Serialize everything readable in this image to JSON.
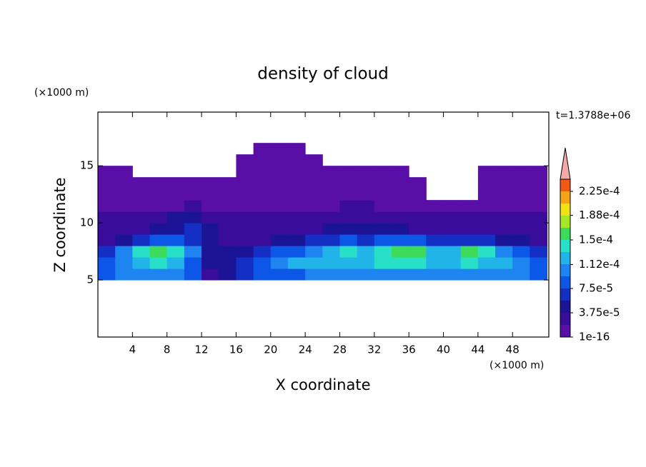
{
  "chart_data": {
    "type": "contour",
    "title": "density of cloud",
    "xlabel": "X coordinate",
    "ylabel": "Z coordinate",
    "x_unit": "(×1000 m)",
    "y_unit": "(×1000 m)",
    "time_label": "t=1.3788e+06",
    "xlim": [
      0,
      52.2
    ],
    "ylim": [
      0,
      19.7
    ],
    "xticks": [
      4,
      8,
      12,
      16,
      20,
      24,
      28,
      32,
      36,
      40,
      44,
      48
    ],
    "yticks": [
      5,
      10,
      15
    ],
    "x": [
      1,
      3,
      5,
      7,
      9,
      11,
      13,
      15,
      17,
      19,
      21,
      23,
      25,
      27,
      29,
      31,
      33,
      35,
      37,
      39,
      41,
      43,
      45,
      47,
      49,
      51
    ],
    "z": [
      5.5,
      6.5,
      7.5,
      8.5,
      9.5,
      10.5,
      11.5,
      12.5,
      13.5,
      14.5,
      15.5,
      16.5
    ],
    "values": [
      [
        9e-05,
        0.0001,
        0.00011,
        0.00011,
        0.0001,
        8e-05,
        3e-05,
        4e-05,
        6e-05,
        8e-05,
        9e-05,
        9e-05,
        0.0001,
        0.000105,
        0.00011,
        0.00011,
        0.000105,
        0.00011,
        0.00011,
        0.000105,
        0.0001,
        0.000105,
        0.00011,
        0.000105,
        0.0001,
        9e-05
      ],
      [
        8e-05,
        0.00011,
        0.00013,
        0.000135,
        0.000125,
        9e-05,
        4e-05,
        5e-05,
        7e-05,
        9e-05,
        0.00011,
        0.000115,
        0.00012,
        0.000125,
        0.00013,
        0.00013,
        0.000135,
        0.00014,
        0.00014,
        0.00013,
        0.00013,
        0.000135,
        0.00013,
        0.000125,
        0.00011,
        9e-05
      ],
      [
        6e-05,
        0.0001,
        0.000145,
        0.00016,
        0.000145,
        0.0001,
        5e-05,
        4e-05,
        5e-05,
        6e-05,
        8e-05,
        9e-05,
        0.00011,
        0.00013,
        0.000135,
        0.00013,
        0.00014,
        0.000165,
        0.00015,
        0.00013,
        0.00013,
        0.00015,
        0.00014,
        0.00011,
        8e-05,
        6e-05
      ],
      [
        3e-05,
        5e-05,
        7e-05,
        8e-05,
        8e-05,
        7e-05,
        5e-05,
        3e-05,
        3e-05,
        3e-05,
        4e-05,
        5e-05,
        6e-05,
        7e-05,
        8e-05,
        7e-05,
        8e-05,
        9e-05,
        8e-05,
        6e-05,
        6e-05,
        7e-05,
        6e-05,
        5e-05,
        4e-05,
        3e-05
      ],
      [
        2e-05,
        3e-05,
        3e-05,
        4e-05,
        5e-05,
        6e-05,
        5e-05,
        3e-05,
        2e-05,
        2e-05,
        2e-05,
        2e-05,
        3e-05,
        4e-05,
        5e-05,
        5e-05,
        4e-05,
        4e-05,
        3e-05,
        3e-05,
        3e-05,
        3e-05,
        3e-05,
        3e-05,
        2e-05,
        2e-05
      ],
      [
        2e-05,
        2e-05,
        2e-05,
        3e-05,
        4e-05,
        4e-05,
        3e-05,
        2e-05,
        2e-05,
        2e-05,
        2e-05,
        2e-05,
        2e-05,
        2e-05,
        3e-05,
        3e-05,
        2e-05,
        2e-05,
        2e-05,
        2e-05,
        2e-05,
        2e-05,
        2e-05,
        2e-05,
        2e-05,
        2e-05
      ],
      [
        1e-05,
        1e-05,
        1e-05,
        1e-05,
        1e-05,
        2e-05,
        1e-05,
        1e-05,
        1e-05,
        1e-05,
        1e-05,
        1e-05,
        1e-05,
        1e-05,
        2e-05,
        2e-05,
        1e-05,
        1e-05,
        1e-05,
        1e-05,
        1e-05,
        1e-05,
        1e-05,
        1e-05,
        1e-05,
        1e-05
      ],
      [
        1e-05,
        1e-05,
        1e-05,
        1e-05,
        1e-05,
        1e-05,
        1e-05,
        1e-05,
        1e-05,
        1e-05,
        1e-05,
        1e-05,
        1e-05,
        1e-05,
        1e-05,
        1e-05,
        1e-05,
        1e-05,
        1e-05,
        null,
        null,
        null,
        1e-05,
        1e-05,
        1e-05,
        1e-05
      ],
      [
        1e-05,
        1e-05,
        1e-05,
        1e-05,
        1e-05,
        1e-05,
        1e-05,
        1e-05,
        1e-05,
        1e-05,
        1e-05,
        1e-05,
        1e-05,
        1e-05,
        1e-05,
        1e-05,
        1e-05,
        1e-05,
        1e-05,
        null,
        null,
        null,
        1e-05,
        1e-05,
        1e-05,
        1e-05
      ],
      [
        1e-05,
        1e-05,
        null,
        null,
        null,
        null,
        null,
        null,
        1e-05,
        1e-05,
        1e-05,
        1e-05,
        1e-05,
        1e-05,
        1e-05,
        1e-05,
        1e-05,
        1e-05,
        null,
        null,
        null,
        null,
        1e-05,
        1e-05,
        1e-05,
        1e-05
      ],
      [
        null,
        null,
        null,
        null,
        null,
        null,
        null,
        null,
        1e-05,
        1e-05,
        1e-05,
        1e-05,
        1e-05,
        null,
        null,
        null,
        null,
        null,
        null,
        null,
        null,
        null,
        null,
        null,
        null,
        null
      ],
      [
        null,
        null,
        null,
        null,
        null,
        null,
        null,
        null,
        null,
        1e-05,
        1e-05,
        1e-05,
        null,
        null,
        null,
        null,
        null,
        null,
        null,
        null,
        null,
        null,
        null,
        null,
        null,
        null
      ]
    ],
    "levels": [
      1e-16,
      1.875e-05,
      3.75e-05,
      5.625e-05,
      7.5e-05,
      9.375e-05,
      0.0001125,
      0.00013125,
      0.00015,
      0.00016875,
      0.0001875,
      0.00020625,
      0.000225,
      0.00024375
    ],
    "colors": [
      "#5a0ea8",
      "#3a0c9c",
      "#1c1496",
      "#1430c4",
      "#0c56e8",
      "#1e84f0",
      "#20b4e8",
      "#28e0c8",
      "#3cdc5a",
      "#a6e628",
      "#f2e214",
      "#f4a414",
      "#f25a14"
    ],
    "over_color": "#f5a8a8",
    "colorbar_ticks": [
      {
        "value": 1e-16,
        "label": "1e-16"
      },
      {
        "value": 3.75e-05,
        "label": "3.75e-5"
      },
      {
        "value": 7.5e-05,
        "label": "7.5e-5"
      },
      {
        "value": 0.000112,
        "label": "1.12e-4"
      },
      {
        "value": 0.00015,
        "label": "1.5e-4"
      },
      {
        "value": 0.000188,
        "label": "1.88e-4"
      },
      {
        "value": 0.000225,
        "label": "2.25e-4"
      }
    ]
  }
}
